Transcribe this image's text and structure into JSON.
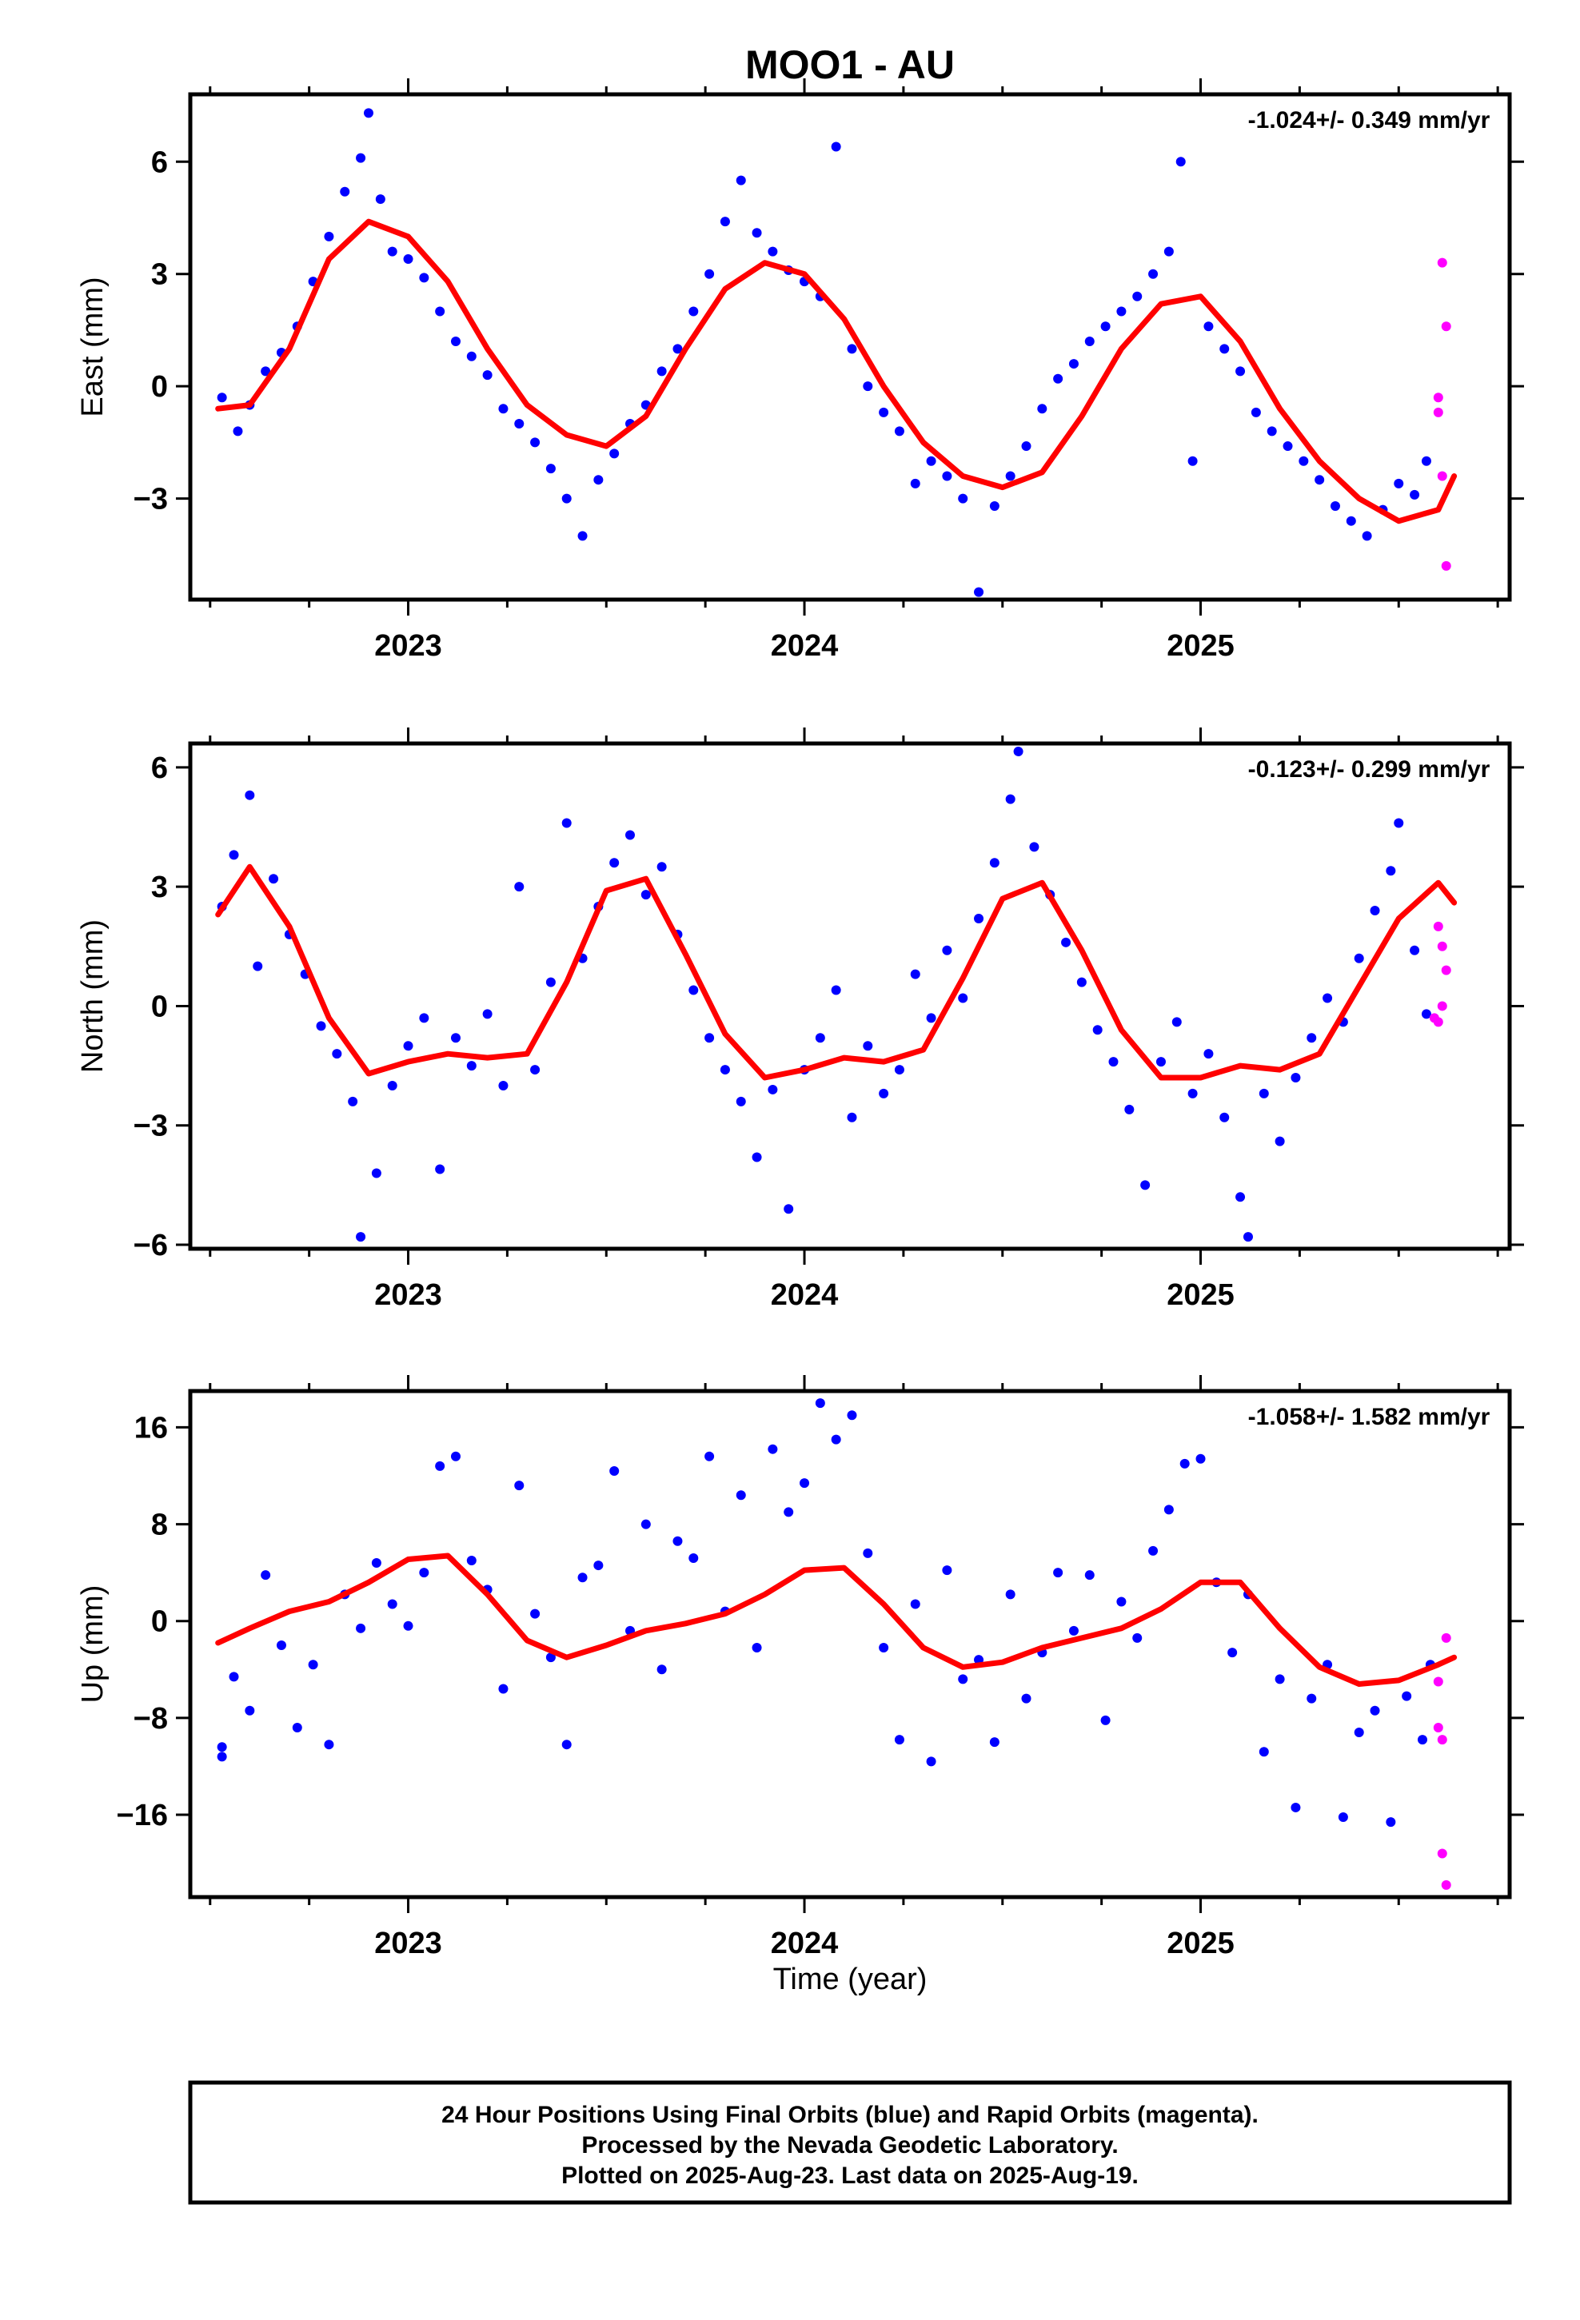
{
  "title": "MOO1 - AU",
  "xlabel": "Time (year)",
  "footer": {
    "line1": "24 Hour Positions Using Final Orbits (blue) and Rapid Orbits (magenta).",
    "line2": "Processed by the Nevada Geodetic Laboratory.",
    "line3": "Plotted on 2025-Aug-23. Last data on 2025-Aug-19."
  },
  "colors": {
    "final": "#0000ff",
    "rapid": "#ff00ff",
    "fit": "#ff0000",
    "frame": "#000000"
  },
  "chart_data": [
    {
      "type": "scatter",
      "ylabel": "East (mm)",
      "rate": "-1.024+/- 0.349 mm/yr",
      "xlim": [
        2022.45,
        2025.78
      ],
      "ylim": [
        -5.7,
        7.8
      ],
      "xticks": [
        2023,
        2024,
        2025
      ],
      "yticks": [
        -3,
        0,
        3,
        6
      ],
      "fit": {
        "x": [
          2022.52,
          2022.6,
          2022.7,
          2022.8,
          2022.9,
          2023.0,
          2023.1,
          2023.2,
          2023.3,
          2023.4,
          2023.5,
          2023.6,
          2023.7,
          2023.8,
          2023.9,
          2024.0,
          2024.1,
          2024.2,
          2024.3,
          2024.4,
          2024.5,
          2024.6,
          2024.7,
          2024.8,
          2024.9,
          2025.0,
          2025.1,
          2025.2,
          2025.3,
          2025.4,
          2025.5,
          2025.6,
          2025.64
        ],
        "y": [
          -0.6,
          -0.5,
          1.0,
          3.4,
          4.4,
          4.0,
          2.8,
          1.0,
          -0.5,
          -1.3,
          -1.6,
          -0.8,
          1.0,
          2.6,
          3.3,
          3.0,
          1.8,
          0.0,
          -1.5,
          -2.4,
          -2.7,
          -2.3,
          -0.8,
          1.0,
          2.2,
          2.4,
          1.2,
          -0.6,
          -2.0,
          -3.0,
          -3.6,
          -3.3,
          -2.4
        ]
      },
      "final": [
        [
          2022.53,
          -0.3
        ],
        [
          2022.57,
          -1.2
        ],
        [
          2022.6,
          -0.5
        ],
        [
          2022.64,
          0.4
        ],
        [
          2022.68,
          0.9
        ],
        [
          2022.72,
          1.6
        ],
        [
          2022.76,
          2.8
        ],
        [
          2022.8,
          4.0
        ],
        [
          2022.84,
          5.2
        ],
        [
          2022.88,
          6.1
        ],
        [
          2022.9,
          7.3
        ],
        [
          2022.93,
          5.0
        ],
        [
          2022.96,
          3.6
        ],
        [
          2023.0,
          3.4
        ],
        [
          2023.04,
          2.9
        ],
        [
          2023.08,
          2.0
        ],
        [
          2023.12,
          1.2
        ],
        [
          2023.16,
          0.8
        ],
        [
          2023.2,
          0.3
        ],
        [
          2023.24,
          -0.6
        ],
        [
          2023.28,
          -1.0
        ],
        [
          2023.32,
          -1.5
        ],
        [
          2023.36,
          -2.2
        ],
        [
          2023.4,
          -3.0
        ],
        [
          2023.44,
          -4.0
        ],
        [
          2023.48,
          -2.5
        ],
        [
          2023.52,
          -1.8
        ],
        [
          2023.56,
          -1.0
        ],
        [
          2023.6,
          -0.5
        ],
        [
          2023.64,
          0.4
        ],
        [
          2023.68,
          1.0
        ],
        [
          2023.72,
          2.0
        ],
        [
          2023.76,
          3.0
        ],
        [
          2023.8,
          4.4
        ],
        [
          2023.84,
          5.5
        ],
        [
          2023.88,
          4.1
        ],
        [
          2023.92,
          3.6
        ],
        [
          2023.96,
          3.1
        ],
        [
          2024.0,
          2.8
        ],
        [
          2024.04,
          2.4
        ],
        [
          2024.08,
          6.4
        ],
        [
          2024.12,
          1.0
        ],
        [
          2024.16,
          0.0
        ],
        [
          2024.2,
          -0.7
        ],
        [
          2024.24,
          -1.2
        ],
        [
          2024.28,
          -2.6
        ],
        [
          2024.32,
          -2.0
        ],
        [
          2024.36,
          -2.4
        ],
        [
          2024.4,
          -3.0
        ],
        [
          2024.44,
          -5.5
        ],
        [
          2024.48,
          -3.2
        ],
        [
          2024.52,
          -2.4
        ],
        [
          2024.56,
          -1.6
        ],
        [
          2024.6,
          -0.6
        ],
        [
          2024.64,
          0.2
        ],
        [
          2024.68,
          0.6
        ],
        [
          2024.72,
          1.2
        ],
        [
          2024.76,
          1.6
        ],
        [
          2024.8,
          2.0
        ],
        [
          2024.84,
          2.4
        ],
        [
          2024.88,
          3.0
        ],
        [
          2024.92,
          3.6
        ],
        [
          2024.95,
          6.0
        ],
        [
          2024.98,
          -2.0
        ],
        [
          2025.02,
          1.6
        ],
        [
          2025.06,
          1.0
        ],
        [
          2025.1,
          0.4
        ],
        [
          2025.14,
          -0.7
        ],
        [
          2025.18,
          -1.2
        ],
        [
          2025.22,
          -1.6
        ],
        [
          2025.26,
          -2.0
        ],
        [
          2025.3,
          -2.5
        ],
        [
          2025.34,
          -3.2
        ],
        [
          2025.38,
          -3.6
        ],
        [
          2025.42,
          -4.0
        ],
        [
          2025.46,
          -3.3
        ],
        [
          2025.5,
          -2.6
        ],
        [
          2025.54,
          -2.9
        ],
        [
          2025.57,
          -2.0
        ]
      ],
      "rapid": [
        [
          2025.61,
          3.3
        ],
        [
          2025.62,
          1.6
        ],
        [
          2025.6,
          -0.3
        ],
        [
          2025.6,
          -0.7
        ],
        [
          2025.61,
          -2.4
        ],
        [
          2025.62,
          -4.8
        ]
      ]
    },
    {
      "type": "scatter",
      "ylabel": "North (mm)",
      "rate": "-0.123+/- 0.299 mm/yr",
      "xlim": [
        2022.45,
        2025.78
      ],
      "ylim": [
        -6.1,
        6.6
      ],
      "xticks": [
        2023,
        2024,
        2025
      ],
      "yticks": [
        -6,
        -3,
        0,
        3,
        6
      ],
      "fit": {
        "x": [
          2022.52,
          2022.6,
          2022.7,
          2022.8,
          2022.9,
          2023.0,
          2023.1,
          2023.2,
          2023.3,
          2023.4,
          2023.5,
          2023.6,
          2023.7,
          2023.8,
          2023.9,
          2024.0,
          2024.1,
          2024.2,
          2024.3,
          2024.4,
          2024.5,
          2024.6,
          2024.7,
          2024.8,
          2024.9,
          2025.0,
          2025.1,
          2025.2,
          2025.3,
          2025.4,
          2025.5,
          2025.6,
          2025.64
        ],
        "y": [
          2.3,
          3.5,
          2.0,
          -0.3,
          -1.7,
          -1.4,
          -1.2,
          -1.3,
          -1.2,
          0.6,
          2.9,
          3.2,
          1.3,
          -0.7,
          -1.8,
          -1.6,
          -1.3,
          -1.4,
          -1.1,
          0.7,
          2.7,
          3.1,
          1.4,
          -0.6,
          -1.8,
          -1.8,
          -1.5,
          -1.6,
          -1.2,
          0.5,
          2.2,
          3.1,
          2.6
        ]
      },
      "final": [
        [
          2022.53,
          2.5
        ],
        [
          2022.56,
          3.8
        ],
        [
          2022.6,
          5.3
        ],
        [
          2022.62,
          1.0
        ],
        [
          2022.66,
          3.2
        ],
        [
          2022.7,
          1.8
        ],
        [
          2022.74,
          0.8
        ],
        [
          2022.78,
          -0.5
        ],
        [
          2022.82,
          -1.2
        ],
        [
          2022.86,
          -2.4
        ],
        [
          2022.88,
          -5.8
        ],
        [
          2022.92,
          -4.2
        ],
        [
          2022.96,
          -2.0
        ],
        [
          2023.0,
          -1.0
        ],
        [
          2023.04,
          -0.3
        ],
        [
          2023.08,
          -4.1
        ],
        [
          2023.12,
          -0.8
        ],
        [
          2023.16,
          -1.5
        ],
        [
          2023.2,
          -0.2
        ],
        [
          2023.24,
          -2.0
        ],
        [
          2023.28,
          3.0
        ],
        [
          2023.32,
          -1.6
        ],
        [
          2023.36,
          0.6
        ],
        [
          2023.4,
          4.6
        ],
        [
          2023.44,
          1.2
        ],
        [
          2023.48,
          2.5
        ],
        [
          2023.52,
          3.6
        ],
        [
          2023.56,
          4.3
        ],
        [
          2023.6,
          2.8
        ],
        [
          2023.64,
          3.5
        ],
        [
          2023.68,
          1.8
        ],
        [
          2023.72,
          0.4
        ],
        [
          2023.76,
          -0.8
        ],
        [
          2023.8,
          -1.6
        ],
        [
          2023.84,
          -2.4
        ],
        [
          2023.88,
          -3.8
        ],
        [
          2023.92,
          -2.1
        ],
        [
          2023.96,
          -5.1
        ],
        [
          2024.0,
          -1.6
        ],
        [
          2024.04,
          -0.8
        ],
        [
          2024.08,
          0.4
        ],
        [
          2024.12,
          -2.8
        ],
        [
          2024.16,
          -1.0
        ],
        [
          2024.2,
          -2.2
        ],
        [
          2024.24,
          -1.6
        ],
        [
          2024.28,
          0.8
        ],
        [
          2024.32,
          -0.3
        ],
        [
          2024.36,
          1.4
        ],
        [
          2024.4,
          0.2
        ],
        [
          2024.44,
          2.2
        ],
        [
          2024.48,
          3.6
        ],
        [
          2024.52,
          5.2
        ],
        [
          2024.54,
          6.4
        ],
        [
          2024.58,
          4.0
        ],
        [
          2024.62,
          2.8
        ],
        [
          2024.66,
          1.6
        ],
        [
          2024.7,
          0.6
        ],
        [
          2024.74,
          -0.6
        ],
        [
          2024.78,
          -1.4
        ],
        [
          2024.82,
          -2.6
        ],
        [
          2024.86,
          -4.5
        ],
        [
          2024.9,
          -1.4
        ],
        [
          2024.94,
          -0.4
        ],
        [
          2024.98,
          -2.2
        ],
        [
          2025.02,
          -1.2
        ],
        [
          2025.06,
          -2.8
        ],
        [
          2025.1,
          -4.8
        ],
        [
          2025.12,
          -5.8
        ],
        [
          2025.16,
          -2.2
        ],
        [
          2025.2,
          -3.4
        ],
        [
          2025.24,
          -1.8
        ],
        [
          2025.28,
          -0.8
        ],
        [
          2025.32,
          0.2
        ],
        [
          2025.36,
          -0.4
        ],
        [
          2025.4,
          1.2
        ],
        [
          2025.44,
          2.4
        ],
        [
          2025.48,
          3.4
        ],
        [
          2025.5,
          4.6
        ],
        [
          2025.54,
          1.4
        ],
        [
          2025.57,
          -0.2
        ]
      ],
      "rapid": [
        [
          2025.6,
          2.0
        ],
        [
          2025.61,
          1.5
        ],
        [
          2025.62,
          0.9
        ],
        [
          2025.61,
          0.0
        ],
        [
          2025.59,
          -0.3
        ],
        [
          2025.6,
          -0.4
        ]
      ]
    },
    {
      "type": "scatter",
      "ylabel": "Up (mm)",
      "rate": "-1.058+/- 1.582 mm/yr",
      "xlim": [
        2022.45,
        2025.78
      ],
      "ylim": [
        -22.8,
        19.0
      ],
      "xticks": [
        2023,
        2024,
        2025
      ],
      "yticks": [
        -16,
        -8,
        0,
        8,
        16
      ],
      "fit": {
        "x": [
          2022.52,
          2022.6,
          2022.7,
          2022.8,
          2022.9,
          2023.0,
          2023.1,
          2023.2,
          2023.3,
          2023.4,
          2023.5,
          2023.6,
          2023.7,
          2023.8,
          2023.9,
          2024.0,
          2024.1,
          2024.2,
          2024.3,
          2024.4,
          2024.5,
          2024.6,
          2024.7,
          2024.8,
          2024.9,
          2025.0,
          2025.1,
          2025.2,
          2025.3,
          2025.4,
          2025.5,
          2025.6,
          2025.64
        ],
        "y": [
          -1.8,
          -0.6,
          0.8,
          1.6,
          3.2,
          5.1,
          5.4,
          2.2,
          -1.6,
          -3.0,
          -2.0,
          -0.8,
          -0.2,
          0.6,
          2.2,
          4.2,
          4.4,
          1.4,
          -2.2,
          -3.8,
          -3.4,
          -2.2,
          -1.4,
          -0.6,
          1.0,
          3.2,
          3.2,
          -0.6,
          -3.8,
          -5.2,
          -4.9,
          -3.6,
          -3.0
        ]
      },
      "final": [
        [
          2022.53,
          -11.2
        ],
        [
          2022.53,
          -10.4
        ],
        [
          2022.56,
          -4.6
        ],
        [
          2022.6,
          -7.4
        ],
        [
          2022.64,
          3.8
        ],
        [
          2022.68,
          -2.0
        ],
        [
          2022.72,
          -8.8
        ],
        [
          2022.76,
          -3.6
        ],
        [
          2022.8,
          -10.2
        ],
        [
          2022.84,
          2.2
        ],
        [
          2022.88,
          -0.6
        ],
        [
          2022.92,
          4.8
        ],
        [
          2022.96,
          1.4
        ],
        [
          2023.0,
          -0.4
        ],
        [
          2023.04,
          4.0
        ],
        [
          2023.08,
          12.8
        ],
        [
          2023.12,
          13.6
        ],
        [
          2023.16,
          5.0
        ],
        [
          2023.2,
          2.6
        ],
        [
          2023.24,
          -5.6
        ],
        [
          2023.28,
          11.2
        ],
        [
          2023.32,
          0.6
        ],
        [
          2023.36,
          -3.0
        ],
        [
          2023.4,
          -10.2
        ],
        [
          2023.44,
          3.6
        ],
        [
          2023.48,
          4.6
        ],
        [
          2023.52,
          12.4
        ],
        [
          2023.56,
          -0.8
        ],
        [
          2023.6,
          8.0
        ],
        [
          2023.64,
          -4.0
        ],
        [
          2023.68,
          6.6
        ],
        [
          2023.72,
          5.2
        ],
        [
          2023.76,
          13.6
        ],
        [
          2023.8,
          0.8
        ],
        [
          2023.84,
          10.4
        ],
        [
          2023.88,
          -2.2
        ],
        [
          2023.92,
          14.2
        ],
        [
          2023.96,
          9.0
        ],
        [
          2024.0,
          11.4
        ],
        [
          2024.04,
          18.0
        ],
        [
          2024.08,
          15.0
        ],
        [
          2024.12,
          17.0
        ],
        [
          2024.16,
          5.6
        ],
        [
          2024.2,
          -2.2
        ],
        [
          2024.24,
          -9.8
        ],
        [
          2024.28,
          1.4
        ],
        [
          2024.32,
          -11.6
        ],
        [
          2024.36,
          4.2
        ],
        [
          2024.4,
          -4.8
        ],
        [
          2024.44,
          -3.2
        ],
        [
          2024.48,
          -10.0
        ],
        [
          2024.52,
          2.2
        ],
        [
          2024.56,
          -6.4
        ],
        [
          2024.6,
          -2.6
        ],
        [
          2024.64,
          4.0
        ],
        [
          2024.68,
          -0.8
        ],
        [
          2024.72,
          3.8
        ],
        [
          2024.76,
          -8.2
        ],
        [
          2024.8,
          1.6
        ],
        [
          2024.84,
          -1.4
        ],
        [
          2024.88,
          5.8
        ],
        [
          2024.92,
          9.2
        ],
        [
          2024.96,
          13.0
        ],
        [
          2025.0,
          13.4
        ],
        [
          2025.04,
          3.2
        ],
        [
          2025.08,
          -2.6
        ],
        [
          2025.12,
          2.2
        ],
        [
          2025.16,
          -10.8
        ],
        [
          2025.2,
          -4.8
        ],
        [
          2025.24,
          -15.4
        ],
        [
          2025.28,
          -6.4
        ],
        [
          2025.32,
          -3.6
        ],
        [
          2025.36,
          -16.2
        ],
        [
          2025.4,
          -9.2
        ],
        [
          2025.44,
          -7.4
        ],
        [
          2025.48,
          -16.6
        ],
        [
          2025.52,
          -6.2
        ],
        [
          2025.56,
          -9.8
        ],
        [
          2025.58,
          -3.6
        ]
      ],
      "rapid": [
        [
          2025.62,
          -1.4
        ],
        [
          2025.6,
          -5.0
        ],
        [
          2025.6,
          -8.8
        ],
        [
          2025.61,
          -9.8
        ],
        [
          2025.61,
          -19.2
        ],
        [
          2025.62,
          -21.8
        ]
      ]
    }
  ]
}
